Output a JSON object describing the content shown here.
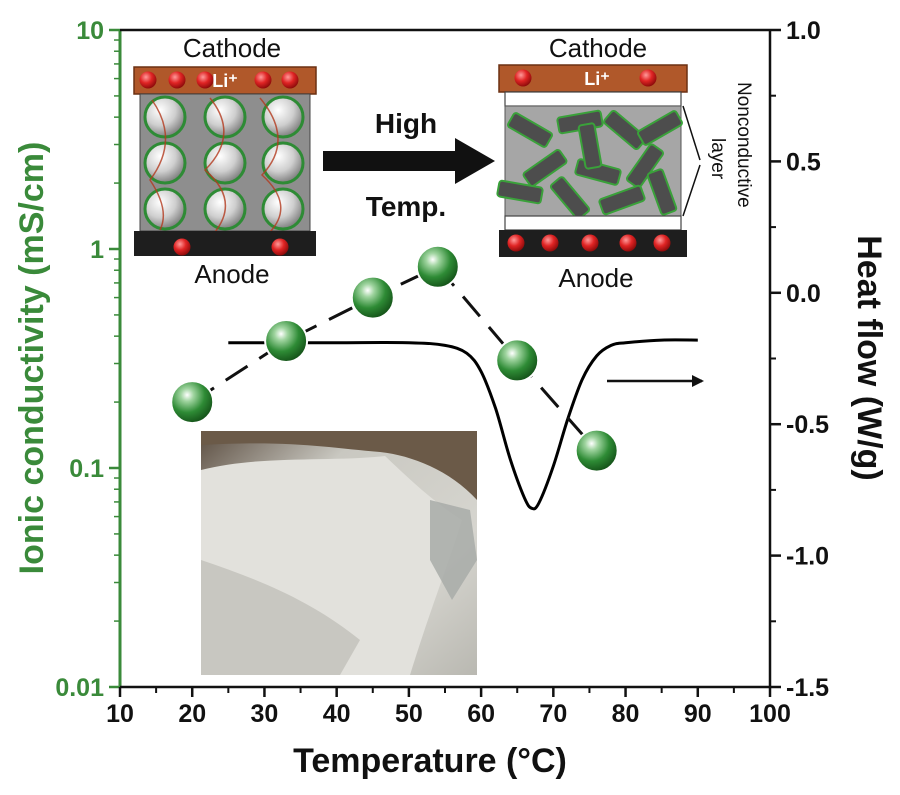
{
  "chart_data": {
    "type": "scatter",
    "x_axis": {
      "label": "Temperature (°C)",
      "range": [
        10,
        100
      ],
      "ticks": [
        "10",
        "20",
        "30",
        "40",
        "50",
        "60",
        "70",
        "80",
        "90",
        "100"
      ]
    },
    "y_axis_left": {
      "label": "Ionic conductivity (mS/cm)",
      "scale": "log",
      "range": [
        0.01,
        10
      ],
      "ticks": [
        "0.01",
        "0.1",
        "1",
        "10"
      ]
    },
    "y_axis_right": {
      "label": "Heat flow (W/g)",
      "range": [
        -1.5,
        1.0
      ],
      "ticks": [
        "-1.5",
        "-1.0",
        "-0.5",
        "0.0",
        "0.5",
        "1.0"
      ]
    },
    "series": [
      {
        "axis": "left",
        "marker": "sphere",
        "color": "#2e7d32",
        "x": [
          20,
          33,
          45,
          54,
          65,
          76
        ],
        "y": [
          0.2,
          0.38,
          0.6,
          0.83,
          0.31,
          0.12
        ]
      },
      {
        "axis": "right",
        "line": "solid",
        "color": "#000000",
        "x": [
          25,
          30,
          40,
          50,
          55,
          58,
          60,
          62,
          64,
          66,
          67,
          68,
          70,
          72,
          74,
          76,
          78,
          80,
          85,
          90
        ],
        "y": [
          -0.19,
          -0.19,
          -0.19,
          -0.19,
          -0.2,
          -0.23,
          -0.3,
          -0.44,
          -0.63,
          -0.78,
          -0.82,
          -0.8,
          -0.66,
          -0.48,
          -0.33,
          -0.24,
          -0.2,
          -0.19,
          -0.18,
          -0.18
        ]
      }
    ],
    "annotation_arrow": "right",
    "grid": false
  },
  "schematic": {
    "left": {
      "top": "Cathode",
      "bottom": "Anode",
      "ion": "Li⁺"
    },
    "transition_top": "High",
    "transition_bottom": "Temp.",
    "right": {
      "top": "Cathode",
      "bottom": "Anode",
      "ion": "Li⁺"
    },
    "side_label_1": "Nonconductive",
    "side_label_2": "layer"
  },
  "colors": {
    "green": "#3a8a3a",
    "copper": "#b0582a",
    "ion_red": "#d82020"
  }
}
